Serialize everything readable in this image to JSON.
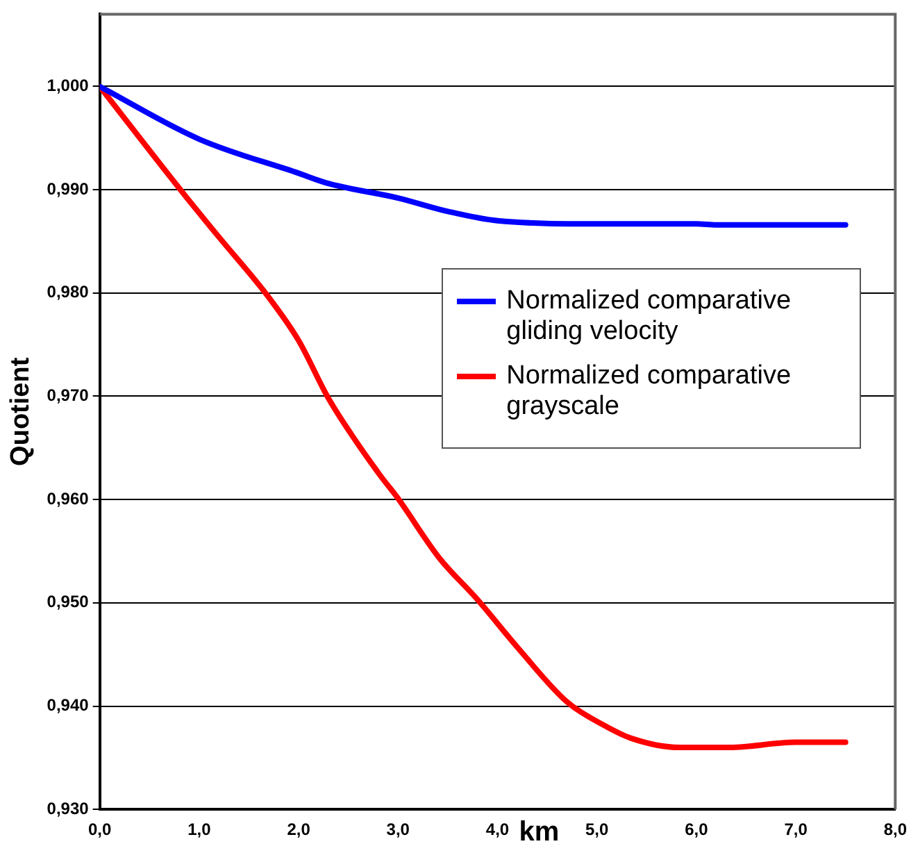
{
  "chart_data": {
    "type": "line",
    "xlabel": "km",
    "ylabel": "Quotient",
    "xlim": [
      0,
      8
    ],
    "xticks": [
      {
        "value": 0,
        "label": "0,0"
      },
      {
        "value": 1,
        "label": "1,0"
      },
      {
        "value": 2,
        "label": "2,0"
      },
      {
        "value": 3,
        "label": "3,0"
      },
      {
        "value": 4,
        "label": "4,0"
      },
      {
        "value": 5,
        "label": "5,0"
      },
      {
        "value": 6,
        "label": "6,0"
      },
      {
        "value": 7,
        "label": "7,0"
      },
      {
        "value": 8,
        "label": "8,0"
      }
    ],
    "ylim": [
      0.93,
      1.007
    ],
    "yticks": [
      {
        "value": 0.93,
        "label": "0,930"
      },
      {
        "value": 0.94,
        "label": "0,940"
      },
      {
        "value": 0.95,
        "label": "0,950"
      },
      {
        "value": 0.96,
        "label": "0,960"
      },
      {
        "value": 0.97,
        "label": "0,970"
      },
      {
        "value": 0.98,
        "label": "0,980"
      },
      {
        "value": 0.99,
        "label": "0,990"
      },
      {
        "value": 1.0,
        "label": "1,000"
      }
    ],
    "grid": "y",
    "legend": "right",
    "marker": "none",
    "line_style": "solid",
    "series": [
      {
        "name": "Normalized comparative gliding velocity",
        "color": "#0000ff",
        "x": [
          0,
          1.0,
          2.0,
          2.3,
          3.0,
          3.5,
          4.0,
          5.0,
          6.0,
          6.2,
          7.5
        ],
        "values": [
          1.0,
          0.9949,
          0.9916,
          0.9906,
          0.9892,
          0.9879,
          0.987,
          0.9867,
          0.9867,
          0.9866,
          0.9866
        ]
      },
      {
        "name": "Normalized comparative grayscale",
        "color": "#ff0000",
        "x": [
          0,
          0.82,
          1.2,
          1.69,
          2.0,
          2.3,
          2.8,
          3.0,
          3.41,
          3.8,
          4.2,
          4.7,
          5.06,
          5.34,
          5.83,
          6.34,
          7.0,
          7.5
        ],
        "values": [
          1.0,
          0.9899,
          0.9854,
          0.9797,
          0.9754,
          0.9698,
          0.9626,
          0.9601,
          0.9544,
          0.9503,
          0.9457,
          0.9404,
          0.9382,
          0.9369,
          0.936,
          0.936,
          0.9365,
          0.9365
        ]
      }
    ]
  }
}
